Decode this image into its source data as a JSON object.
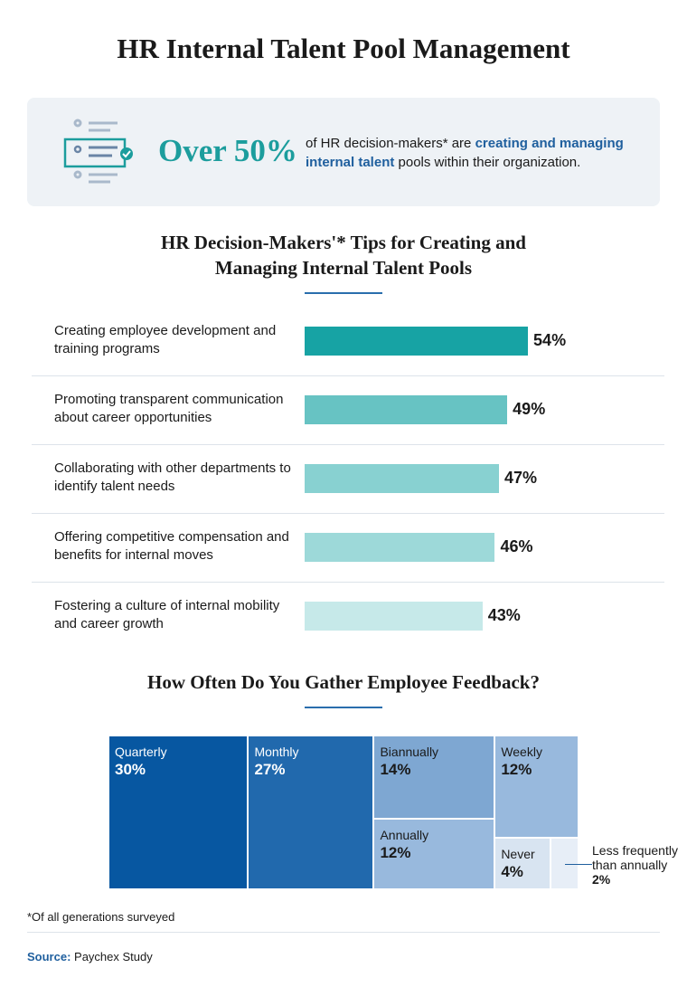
{
  "title": "HR Internal Talent Pool Management",
  "callout": {
    "highlight": "Over 50%",
    "text_before": "of HR decision-makers* are",
    "emphasis": "creating and managing internal talent",
    "text_after": "pools within their organization."
  },
  "chart_data": [
    {
      "type": "bar",
      "orientation": "horizontal",
      "title": "HR Decision-Makers'* Tips for Creating and Managing Internal Talent Pools",
      "categories": [
        "Creating employee development and training programs",
        "Promoting transparent communication about career opportunities",
        "Collaborating with other departments to identify talent needs",
        "Offering competitive compensation and benefits for internal moves",
        "Fostering a culture of internal mobility and career growth"
      ],
      "values": [
        54,
        49,
        47,
        46,
        43
      ],
      "value_labels": [
        "54%",
        "49%",
        "47%",
        "46%",
        "43%"
      ],
      "colors": [
        "#17a3a4",
        "#67c3c3",
        "#88d1d1",
        "#9dd9d9",
        "#c6e9e9"
      ]
    },
    {
      "type": "treemap",
      "title": "How Often Do You Gather Employee Feedback?",
      "categories": [
        "Quarterly",
        "Monthly",
        "Biannually",
        "Weekly",
        "Annually",
        "Never",
        "Less frequently than annually"
      ],
      "values": [
        30,
        27,
        14,
        12,
        12,
        4,
        2
      ],
      "value_labels": [
        "30%",
        "27%",
        "14%",
        "12%",
        "12%",
        "4%",
        "2%"
      ],
      "colors": [
        "#0757a1",
        "#2169ad",
        "#7ea7d2",
        "#98b9dd",
        "#98b9dd",
        "#d8e4f1",
        "#e7eef7"
      ]
    }
  ],
  "footnote": "*Of all generations surveyed",
  "source": {
    "label": "Source:",
    "text": "Paychex Study"
  }
}
